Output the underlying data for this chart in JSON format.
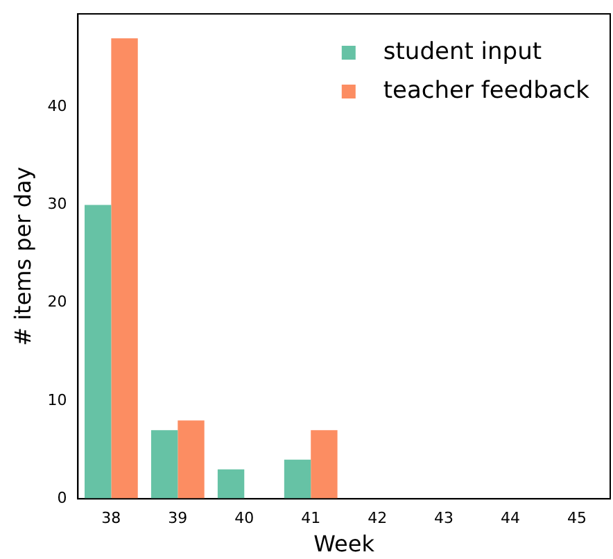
{
  "chart_data": {
    "type": "bar",
    "xlabel": "Week",
    "ylabel": "# items per day",
    "categories": [
      "38",
      "39",
      "40",
      "41",
      "42",
      "43",
      "44",
      "45"
    ],
    "series": [
      {
        "name": "student input",
        "color": "#66c2a5",
        "values": [
          30,
          7,
          3,
          4,
          0,
          0,
          0,
          0
        ]
      },
      {
        "name": "teacher feedback",
        "color": "#fc8d62",
        "values": [
          47,
          8,
          0,
          7,
          0,
          0,
          0,
          0
        ]
      }
    ],
    "ylim": [
      0,
      49.5
    ],
    "yticks": [
      0,
      10,
      20,
      30,
      40
    ],
    "grid": false,
    "legend": "top right"
  }
}
